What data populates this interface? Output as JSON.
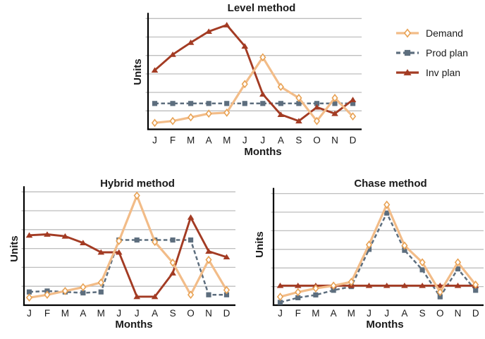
{
  "page": {
    "background": "#ffffff"
  },
  "style": {
    "grid_color": "#bebebe",
    "axis_color": "#000000",
    "text_color": "#1a1a1a",
    "demand_line_color": "#f2bc88",
    "demand_marker_edge_color": "#e8a254",
    "demand_marker_fill": "#ffffff",
    "prod_plan_color": "#5d6e7e",
    "inv_plan_color": "#a33b23"
  },
  "legend": {
    "items": [
      {
        "label": "Demand"
      },
      {
        "label": "Prod plan"
      },
      {
        "label": "Inv plan"
      }
    ]
  },
  "chart_data": [
    {
      "id": "level",
      "type": "line",
      "title": "Level method",
      "xlabel": "Months",
      "ylabel": "Units",
      "categories": [
        "J",
        "F",
        "M",
        "A",
        "M",
        "J",
        "J",
        "A",
        "S",
        "O",
        "N",
        "D"
      ],
      "ylim": [
        0,
        6.5
      ],
      "gridlines": 6,
      "y_axis_numeric_labels": false,
      "legend_position": "outside-top-right-shared",
      "z_order": [
        1,
        2,
        0
      ],
      "series": [
        {
          "name": "Demand",
          "marker": "diamond",
          "line": "solid",
          "color": "#f2bc88",
          "marker_color": "#e8a254",
          "values": [
            0.35,
            0.45,
            0.65,
            0.85,
            0.9,
            2.45,
            3.9,
            2.3,
            1.7,
            0.45,
            1.7,
            0.7
          ]
        },
        {
          "name": "Prod plan",
          "marker": "square",
          "line": "dashed",
          "color": "#5d6e7e",
          "values": [
            1.4,
            1.4,
            1.4,
            1.4,
            1.4,
            1.4,
            1.4,
            1.4,
            1.4,
            1.4,
            1.4,
            1.4
          ]
        },
        {
          "name": "Inv plan",
          "marker": "triangle",
          "line": "solid",
          "color": "#a33b23",
          "values": [
            3.2,
            4.05,
            4.7,
            5.3,
            5.65,
            4.5,
            1.9,
            0.8,
            0.45,
            1.2,
            0.85,
            1.6
          ]
        }
      ]
    },
    {
      "id": "hybrid",
      "type": "line",
      "title": "Hybrid method",
      "xlabel": "Months",
      "ylabel": "Units",
      "categories": [
        "J",
        "F",
        "M",
        "A",
        "M",
        "J",
        "J",
        "A",
        "S",
        "O",
        "N",
        "D"
      ],
      "ylim": [
        0,
        6.5
      ],
      "gridlines": 6,
      "y_axis_numeric_labels": false,
      "z_order": [
        1,
        2,
        0
      ],
      "series": [
        {
          "name": "Demand",
          "marker": "diamond",
          "line": "solid",
          "color": "#f2bc88",
          "marker_color": "#e8a254",
          "values": [
            0.4,
            0.55,
            0.75,
            0.95,
            1.2,
            3.4,
            5.8,
            3.35,
            2.25,
            0.55,
            2.4,
            0.8
          ]
        },
        {
          "name": "Prod plan",
          "marker": "square",
          "line": "dashed",
          "color": "#5d6e7e",
          "values": [
            0.7,
            0.75,
            0.7,
            0.65,
            0.7,
            3.45,
            3.45,
            3.45,
            3.45,
            3.45,
            0.55,
            0.55
          ]
        },
        {
          "name": "Inv plan",
          "marker": "triangle",
          "line": "solid",
          "color": "#a33b23",
          "values": [
            3.7,
            3.75,
            3.65,
            3.3,
            2.8,
            2.8,
            0.45,
            0.45,
            1.7,
            4.65,
            2.85,
            2.55
          ]
        }
      ]
    },
    {
      "id": "chase",
      "type": "line",
      "title": "Chase method",
      "xlabel": "Months",
      "ylabel": "Units",
      "categories": [
        "J",
        "F",
        "M",
        "A",
        "M",
        "J",
        "J",
        "A",
        "S",
        "O",
        "N",
        "D"
      ],
      "ylim": [
        0,
        6.5
      ],
      "gridlines": 6,
      "y_axis_numeric_labels": false,
      "z_order": [
        1,
        2,
        0
      ],
      "series": [
        {
          "name": "Demand",
          "marker": "diamond",
          "line": "solid",
          "color": "#f2bc88",
          "marker_color": "#e8a254",
          "values": [
            0.45,
            0.7,
            0.9,
            1.05,
            1.25,
            3.25,
            5.4,
            3.2,
            2.3,
            0.7,
            2.3,
            1.1
          ]
        },
        {
          "name": "Prod plan",
          "marker": "square",
          "line": "dashed",
          "color": "#5d6e7e",
          "values": [
            0.15,
            0.4,
            0.55,
            0.8,
            1.0,
            3.0,
            4.95,
            2.95,
            1.9,
            0.45,
            1.95,
            0.8
          ]
        },
        {
          "name": "Inv plan",
          "marker": "triangle",
          "line": "solid",
          "color": "#a33b23",
          "values": [
            1.05,
            1.05,
            1.05,
            1.05,
            1.05,
            1.05,
            1.05,
            1.05,
            1.05,
            1.05,
            1.05,
            1.05
          ]
        }
      ]
    }
  ]
}
